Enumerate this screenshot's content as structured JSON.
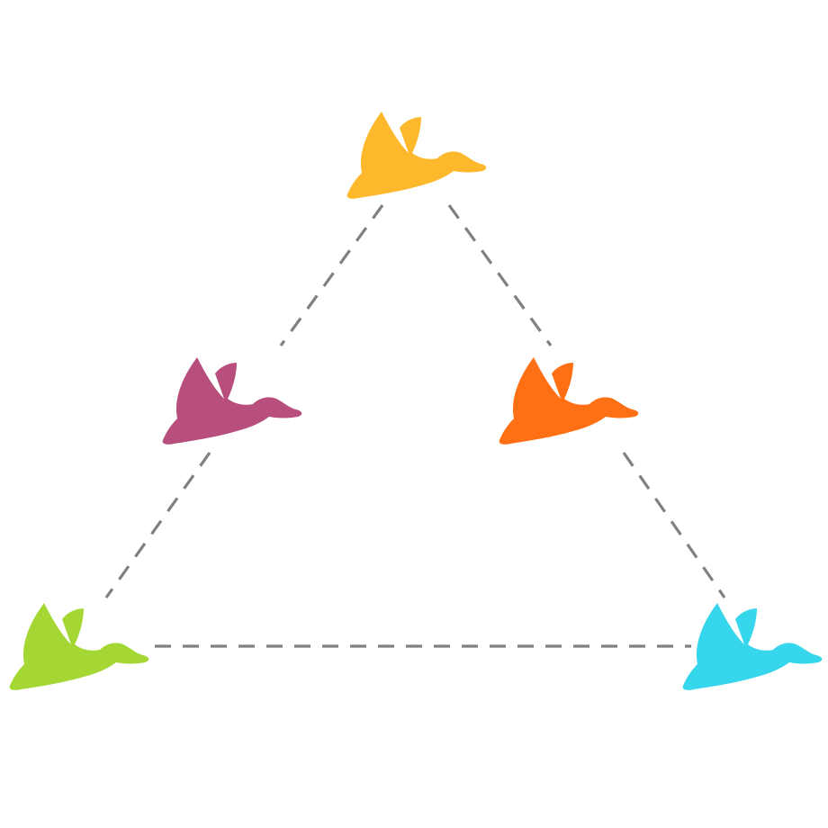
{
  "diagram": {
    "colors": {
      "background": "#ffffff",
      "edge": "#808080"
    },
    "nodes": [
      {
        "id": "top",
        "icon": "bird-icon",
        "color": "#FDB82B"
      },
      {
        "id": "mid-left",
        "icon": "bird-icon",
        "color": "#B74E7C"
      },
      {
        "id": "mid-right",
        "icon": "bird-icon",
        "color": "#FF7015"
      },
      {
        "id": "bottom-left",
        "icon": "bird-icon",
        "color": "#A4D733"
      },
      {
        "id": "bottom-right",
        "icon": "bird-icon",
        "color": "#36D6EC"
      }
    ],
    "edges": [
      {
        "from": "top",
        "to": "mid-left"
      },
      {
        "from": "mid-left",
        "to": "bottom-left"
      },
      {
        "from": "top",
        "to": "mid-right"
      },
      {
        "from": "mid-right",
        "to": "bottom-right"
      },
      {
        "from": "bottom-left",
        "to": "bottom-right"
      }
    ]
  }
}
